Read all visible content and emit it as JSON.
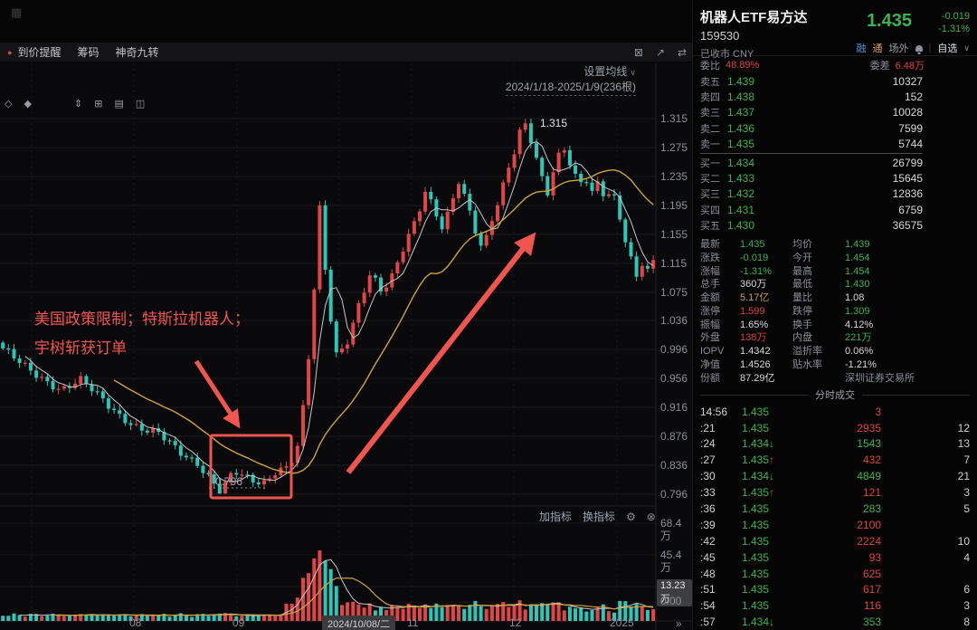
{
  "colors": {
    "up_red": "#e14646",
    "down_teal": "#2bc8ba",
    "text_green": "#3ab44f",
    "text_red": "#e0433d",
    "ma_yellow": "#cfa43e",
    "ma_white": "#c6c6ca",
    "annotation_red": "#f0564f"
  },
  "window": {
    "app_icon": "▦"
  },
  "toolbar": {
    "alert_icon": "●",
    "tabs": [
      "到价提醒",
      "筹码",
      "神奇九转"
    ],
    "right_icons": [
      {
        "name": "close-panel-icon",
        "glyph": "⊠"
      },
      {
        "name": "popout-icon",
        "glyph": "↗"
      },
      {
        "name": "layout-swap-icon",
        "glyph": "⇄"
      }
    ]
  },
  "chart": {
    "tools": [
      {
        "name": "marker-diamond-icon",
        "glyph": "◇"
      },
      {
        "name": "marker-dot-icon",
        "glyph": "◆"
      },
      {
        "name": "scale-tool-icon",
        "glyph": "⇕"
      },
      {
        "name": "grid-tool-icon",
        "glyph": "⊞"
      },
      {
        "name": "pattern-tool-icon",
        "glyph": "▤"
      },
      {
        "name": "split-view-icon",
        "glyph": "◫"
      }
    ],
    "settings_label": "设置均线",
    "settings_caret": "∨",
    "date_range": "2024/1/18-2025/1/9(236根)",
    "peak_label": "1.315",
    "low_label": "0.796",
    "note_line1": "美国政策限制；特斯拉机器人；",
    "note_line2": "宇树斩获订单",
    "add_indicator": "加指标",
    "swap_indicator": "换指标",
    "gear_icon": "⚙",
    "close_icon": "⊗",
    "scroll_right_icon": "»",
    "volume_badge": "13.23万"
  },
  "chart_data": {
    "type": "candlestick",
    "symbol": "159530",
    "title": "机器人ETF易方达 日K",
    "date_range": [
      "2024/1/18",
      "2025/1/9"
    ],
    "bar_count": 236,
    "ylim": [
      0.796,
      1.315
    ],
    "price_ticks": [
      "1.315",
      "1.275",
      "1.235",
      "1.195",
      "1.155",
      "1.115",
      "1.075",
      "1.036",
      "0.996",
      "0.956",
      "0.916",
      "0.876",
      "0.836",
      "0.796"
    ],
    "volume_ticks": [
      "68.4万",
      "45.4万"
    ],
    "volume_zero": "0.00",
    "x_labels": [
      {
        "text": "08"
      },
      {
        "text": "09"
      },
      {
        "text": "2024/10/08/二",
        "badge": true
      },
      {
        "text": "11"
      },
      {
        "text": "12"
      },
      {
        "text": "2025"
      }
    ],
    "annotations": {
      "peak_price": 1.315,
      "low_price": 0.796
    },
    "price_waypoints": [
      [
        0.0,
        0.995
      ],
      [
        0.03,
        0.975
      ],
      [
        0.06,
        0.958
      ],
      [
        0.09,
        0.94
      ],
      [
        0.12,
        0.952
      ],
      [
        0.15,
        0.93
      ],
      [
        0.18,
        0.906
      ],
      [
        0.21,
        0.886
      ],
      [
        0.24,
        0.878
      ],
      [
        0.27,
        0.856
      ],
      [
        0.3,
        0.84
      ],
      [
        0.32,
        0.816
      ],
      [
        0.335,
        0.798
      ],
      [
        0.355,
        0.826
      ],
      [
        0.375,
        0.818
      ],
      [
        0.4,
        0.812
      ],
      [
        0.42,
        0.83
      ],
      [
        0.44,
        0.834
      ],
      [
        0.455,
        0.864
      ],
      [
        0.468,
        0.96
      ],
      [
        0.478,
        1.07
      ],
      [
        0.488,
        1.2
      ],
      [
        0.498,
        1.08
      ],
      [
        0.512,
        0.99
      ],
      [
        0.528,
        1.005
      ],
      [
        0.548,
        1.06
      ],
      [
        0.565,
        1.1
      ],
      [
        0.583,
        1.072
      ],
      [
        0.6,
        1.098
      ],
      [
        0.62,
        1.148
      ],
      [
        0.636,
        1.18
      ],
      [
        0.65,
        1.218
      ],
      [
        0.663,
        1.19
      ],
      [
        0.676,
        1.162
      ],
      [
        0.69,
        1.194
      ],
      [
        0.7,
        1.228
      ],
      [
        0.713,
        1.198
      ],
      [
        0.726,
        1.162
      ],
      [
        0.738,
        1.134
      ],
      [
        0.75,
        1.174
      ],
      [
        0.763,
        1.206
      ],
      [
        0.776,
        1.244
      ],
      [
        0.79,
        1.278
      ],
      [
        0.8,
        1.312
      ],
      [
        0.813,
        1.28
      ],
      [
        0.825,
        1.244
      ],
      [
        0.836,
        1.206
      ],
      [
        0.85,
        1.258
      ],
      [
        0.862,
        1.278
      ],
      [
        0.875,
        1.25
      ],
      [
        0.886,
        1.224
      ],
      [
        0.896,
        1.234
      ],
      [
        0.906,
        1.212
      ],
      [
        0.916,
        1.224
      ],
      [
        0.926,
        1.202
      ],
      [
        0.936,
        1.214
      ],
      [
        0.946,
        1.186
      ],
      [
        0.956,
        1.152
      ],
      [
        0.966,
        1.122
      ],
      [
        0.976,
        1.094
      ],
      [
        0.986,
        1.13
      ],
      [
        0.993,
        1.102
      ],
      [
        1.0,
        1.118
      ]
    ]
  },
  "panel": {
    "name": "机器人ETF易方达",
    "code": "159530",
    "price": "1.435",
    "change": "-0.019",
    "change_pct": "-1.31%",
    "status": "已收市 CNY",
    "tags": [
      {
        "text": "融",
        "color": "#5b8dd6"
      },
      {
        "text": "通",
        "color": "#d6a35b"
      },
      {
        "text": "场外",
        "color": "#9aa0a8"
      }
    ],
    "watchlist_label": "自选",
    "watchlist_caret": "∨",
    "weibi_label": "委比",
    "weibi_value": "48.89%",
    "weicha_label": "委差",
    "weicha_value": "6.48万",
    "asks": [
      [
        "卖五",
        "1.439",
        "10327"
      ],
      [
        "卖四",
        "1.438",
        "152"
      ],
      [
        "卖三",
        "1.437",
        "10028"
      ],
      [
        "卖二",
        "1.436",
        "7599"
      ],
      [
        "卖一",
        "1.435",
        "5744"
      ]
    ],
    "bids": [
      [
        "买一",
        "1.434",
        "26799"
      ],
      [
        "买二",
        "1.433",
        "15645"
      ],
      [
        "买三",
        "1.432",
        "12836"
      ],
      [
        "买四",
        "1.431",
        "6759"
      ],
      [
        "买五",
        "1.430",
        "36575"
      ]
    ],
    "stats": [
      {
        "l1": "最新",
        "v1": "1.435",
        "k1": "green",
        "l2": "均价",
        "v2": "1.439",
        "k2": "green"
      },
      {
        "l1": "涨跌",
        "v1": "-0.019",
        "k1": "green",
        "l2": "今开",
        "v2": "1.454",
        "k2": "green"
      },
      {
        "l1": "涨幅",
        "v1": "-1.31%",
        "k1": "green",
        "l2": "最高",
        "v2": "1.454",
        "k2": "green"
      },
      {
        "l1": "总手",
        "v1": "360万",
        "k1": "white",
        "l2": "最低",
        "v2": "1.430",
        "k2": "green"
      },
      {
        "l1": "金额",
        "v1": "5.17亿",
        "k1": "yellow",
        "l2": "量比",
        "v2": "1.08",
        "k2": "white"
      },
      {
        "l1": "涨停",
        "v1": "1.599",
        "k1": "red",
        "l2": "跌停",
        "v2": "1.309",
        "k2": "green"
      },
      {
        "l1": "振幅",
        "v1": "1.65%",
        "k1": "white",
        "l2": "换手",
        "v2": "4.12%",
        "k2": "white"
      },
      {
        "l1": "外盘",
        "v1": "138万",
        "k1": "red",
        "l2": "内盘",
        "v2": "221万",
        "k2": "green"
      },
      {
        "l1": "IOPV",
        "v1": "1.4342",
        "k1": "white",
        "l2": "溢折率",
        "v2": "0.06%",
        "k2": "white"
      },
      {
        "l1": "净值",
        "v1": "1.4526",
        "k1": "white",
        "l2": "贴水率",
        "v2": "-1.21%",
        "k2": "white"
      },
      {
        "l1": "份额",
        "v1": "87.29亿",
        "k1": "white",
        "l2": "",
        "v2": "深圳证券交易所",
        "k2": "gray"
      }
    ],
    "tape_header": "分时成交",
    "tape": [
      {
        "time": "14:56",
        "price": "1.435",
        "dir": "",
        "vol": "3",
        "vk": "red",
        "count": ""
      },
      {
        "time": ":21",
        "price": "1.435",
        "dir": "",
        "vol": "2935",
        "vk": "red",
        "count": "12"
      },
      {
        "time": ":24",
        "price": "1.434",
        "dir": "down",
        "vol": "1543",
        "vk": "green",
        "count": "13"
      },
      {
        "time": ":27",
        "price": "1.435",
        "dir": "up",
        "vol": "432",
        "vk": "red",
        "count": "7"
      },
      {
        "time": ":30",
        "price": "1.434",
        "dir": "down",
        "vol": "4849",
        "vk": "green",
        "count": "21"
      },
      {
        "time": ":33",
        "price": "1.435",
        "dir": "up",
        "vol": "121",
        "vk": "red",
        "count": "3"
      },
      {
        "time": ":36",
        "price": "1.435",
        "dir": "",
        "vol": "283",
        "vk": "green",
        "count": "5"
      },
      {
        "time": ":39",
        "price": "1.435",
        "dir": "",
        "vol": "2100",
        "vk": "red",
        "count": ""
      },
      {
        "time": ":42",
        "price": "1.435",
        "dir": "",
        "vol": "2224",
        "vk": "red",
        "count": "10"
      },
      {
        "time": ":45",
        "price": "1.435",
        "dir": "",
        "vol": "93",
        "vk": "red",
        "count": "4"
      },
      {
        "time": ":48",
        "price": "1.435",
        "dir": "",
        "vol": "625",
        "vk": "red",
        "count": ""
      },
      {
        "time": ":51",
        "price": "1.435",
        "dir": "",
        "vol": "617",
        "vk": "red",
        "count": "6"
      },
      {
        "time": ":54",
        "price": "1.435",
        "dir": "",
        "vol": "116",
        "vk": "red",
        "count": "3"
      },
      {
        "time": ":57",
        "price": "1.434",
        "dir": "down",
        "vol": "353",
        "vk": "green",
        "count": "8"
      }
    ]
  }
}
